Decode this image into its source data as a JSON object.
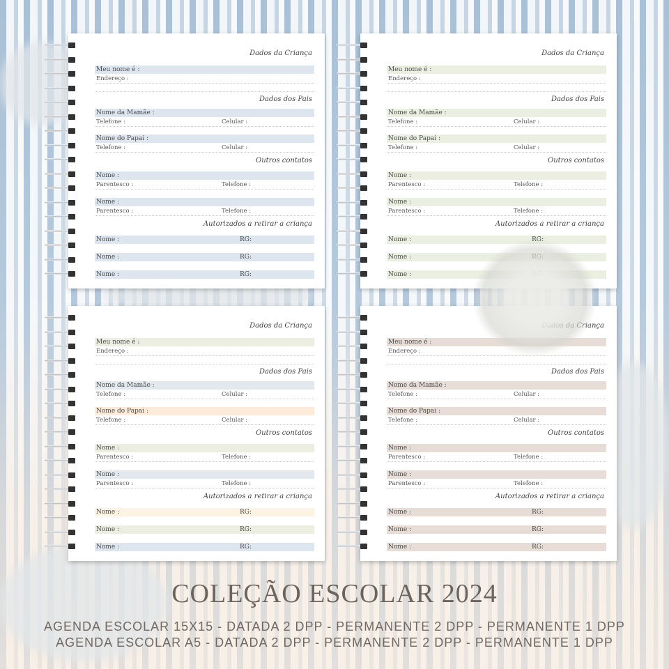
{
  "pages": [
    {
      "colors": [
        "#dde5ee",
        "#dde5ee",
        "#dde5ee",
        "#dde5ee",
        "#dde5ee",
        "#dde5ee",
        "#dde5ee",
        "#dde5ee"
      ]
    },
    {
      "colors": [
        "#ebefe1",
        "#ebefe1",
        "#ebefe1",
        "#ebefe1",
        "#ebefe1",
        "#ebefe1",
        "#ebefe1",
        "#ebefe1"
      ]
    },
    {
      "colors": [
        "#eceee2",
        "#e2e9ee",
        "#fcebd8",
        "#eceee2",
        "#e2e9ee",
        "#fdf3e2",
        "#eceee2",
        "#dde6ee"
      ]
    },
    {
      "colors": [
        "#e7ddd6",
        "#e7ddd6",
        "#e7ddd6",
        "#e7ddd6",
        "#e7ddd6",
        "#e7ddd6",
        "#e7ddd6",
        "#e7ddd6"
      ]
    }
  ],
  "form": {
    "section_child": "Dados da Criança",
    "my_name": "Meu nome é :",
    "address": "Endereço :",
    "section_parents": "Dados dos Pais",
    "mother_name": "Nome da Mamãe :",
    "phone": "Telefone :",
    "mobile": "Celular :",
    "father_name": "Nome do Papai :",
    "section_contacts": "Outros contatos",
    "name": "Nome :",
    "relationship": "Parentesco :",
    "section_authorized": "Autorizados a retirar a criança",
    "rg": "RG:"
  },
  "footer": {
    "title": "COLEÇÃO ESCOLAR 2024",
    "line1": "AGENDA ESCOLAR 15X15 - DATADA 2 DPP - PERMANENTE 2 DPP - PERMANENTE 1 DPP",
    "line2": "AGENDA ESCOLAR A5 - DATADA 2 DPP - PERMANENTE 2 DPP - PERMANENTE 1 DPP"
  }
}
